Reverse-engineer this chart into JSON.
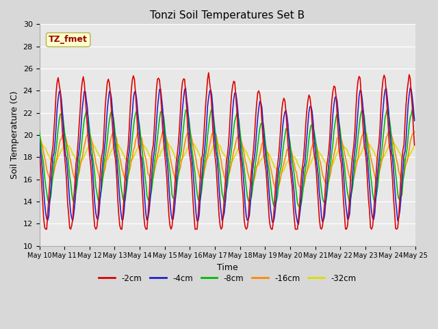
{
  "title": "Tonzi Soil Temperatures Set B",
  "xlabel": "Time",
  "ylabel": "Soil Temperature (C)",
  "ylim": [
    10,
    30
  ],
  "annotation": "TZ_fmet",
  "bg_color": "#e8e8e8",
  "series_colors": [
    "#dd0000",
    "#2222cc",
    "#00bb00",
    "#ff8800",
    "#dddd00"
  ],
  "series_labels": [
    "-2cm",
    "-4cm",
    "-8cm",
    "-16cm",
    "-32cm"
  ],
  "xtick_labels": [
    "May 10",
    "May 11",
    "May 12",
    "May 13",
    "May 14",
    "May 15",
    "May 16",
    "May 17",
    "May 18",
    "May 19",
    "May 20",
    "May 21",
    "May 22",
    "May 23",
    "May 24",
    "May 25"
  ]
}
